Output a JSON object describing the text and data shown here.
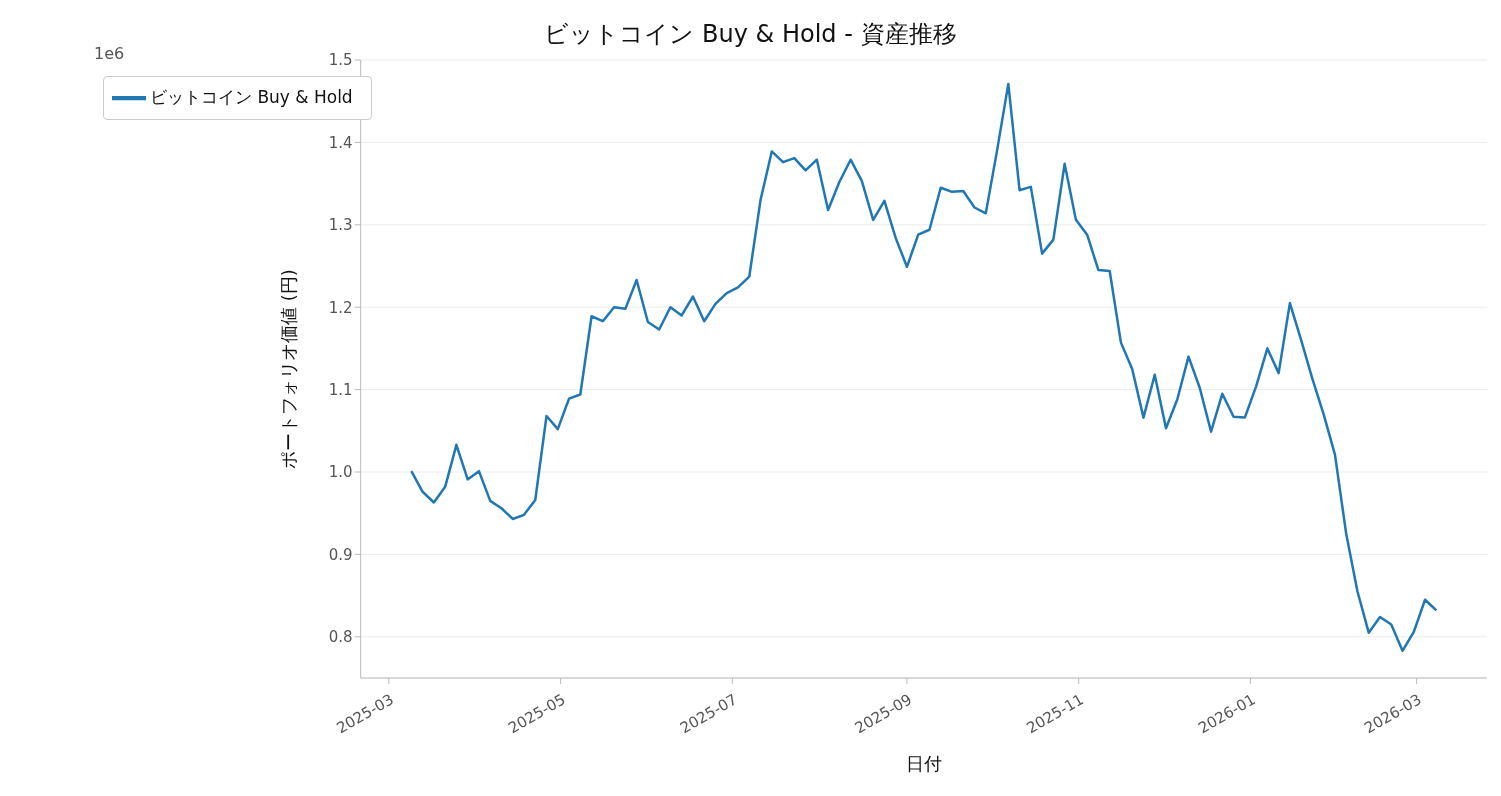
{
  "chart_data": {
    "type": "line",
    "title": "ビットコイン Buy & Hold - 資産推移",
    "xlabel": "日付",
    "ylabel": "ポートフォリオ価値 (円)",
    "annotations": [
      "1e6"
    ],
    "x": [
      "2025-03-09",
      "2025-03-13",
      "2025-03-17",
      "2025-03-21",
      "2025-03-25",
      "2025-03-29",
      "2025-04-02",
      "2025-04-06",
      "2025-04-10",
      "2025-04-14",
      "2025-04-18",
      "2025-04-22",
      "2025-04-26",
      "2025-04-30",
      "2025-05-04",
      "2025-05-08",
      "2025-05-12",
      "2025-05-16",
      "2025-05-20",
      "2025-05-24",
      "2025-05-28",
      "2025-06-01",
      "2025-06-05",
      "2025-06-09",
      "2025-06-13",
      "2025-06-17",
      "2025-06-21",
      "2025-06-25",
      "2025-06-29",
      "2025-07-03",
      "2025-07-07",
      "2025-07-11",
      "2025-07-15",
      "2025-07-19",
      "2025-07-23",
      "2025-07-27",
      "2025-07-31",
      "2025-08-04",
      "2025-08-08",
      "2025-08-12",
      "2025-08-16",
      "2025-08-20",
      "2025-08-24",
      "2025-08-28",
      "2025-09-01",
      "2025-09-05",
      "2025-09-09",
      "2025-09-13",
      "2025-09-17",
      "2025-09-21",
      "2025-09-25",
      "2025-09-29",
      "2025-10-03",
      "2025-10-07",
      "2025-10-11",
      "2025-10-15",
      "2025-10-19",
      "2025-10-23",
      "2025-10-27",
      "2025-10-31",
      "2025-11-04",
      "2025-11-08",
      "2025-11-12",
      "2025-11-16",
      "2025-11-20",
      "2025-11-24",
      "2025-11-28",
      "2025-12-02",
      "2025-12-06",
      "2025-12-10",
      "2025-12-14",
      "2025-12-18",
      "2025-12-22",
      "2025-12-26",
      "2025-12-30",
      "2026-01-03",
      "2026-01-07",
      "2026-01-11",
      "2026-01-15",
      "2026-01-19",
      "2026-01-23",
      "2026-01-27",
      "2026-01-31",
      "2026-02-04",
      "2026-02-08",
      "2026-02-12",
      "2026-02-16",
      "2026-02-20",
      "2026-02-24",
      "2026-02-28",
      "2026-03-04",
      "2026-03-08"
    ],
    "series": [
      {
        "name": "ビットコイン Buy & Hold",
        "color": "#1f77b4",
        "values": [
          1.001,
          0.976,
          0.963,
          0.982,
          1.033,
          0.991,
          1.001,
          0.965,
          0.956,
          0.943,
          0.948,
          0.966,
          1.068,
          1.052,
          1.089,
          1.094,
          1.189,
          1.183,
          1.2,
          1.198,
          1.233,
          1.182,
          1.173,
          1.2,
          1.19,
          1.213,
          1.183,
          1.204,
          1.217,
          1.224,
          1.237,
          1.33,
          1.389,
          1.376,
          1.381,
          1.366,
          1.379,
          1.318,
          1.352,
          1.379,
          1.353,
          1.306,
          1.329,
          1.284,
          1.249,
          1.288,
          1.294,
          1.345,
          1.34,
          1.341,
          1.321,
          1.314,
          1.39,
          1.471,
          1.342,
          1.346,
          1.265,
          1.282,
          1.374,
          1.306,
          1.288,
          1.245,
          1.244,
          1.157,
          1.125,
          1.066,
          1.118,
          1.053,
          1.088,
          1.14,
          1.102,
          1.049,
          1.095,
          1.067,
          1.066,
          1.104,
          1.15,
          1.12,
          1.205,
          1.16,
          1.113,
          1.07,
          1.021,
          0.925,
          0.855,
          0.805,
          0.824,
          0.815,
          0.783,
          0.806,
          0.845,
          0.832
        ]
      }
    ],
    "xlim": [
      "2025-02-19",
      "2026-03-26"
    ],
    "xticks": [
      "2025-03",
      "2025-05",
      "2025-07",
      "2025-09",
      "2025-11",
      "2026-01",
      "2026-03"
    ],
    "ylim": [
      0.75,
      1.5
    ],
    "yticks": [
      {
        "value": 0.8,
        "label": "0.8"
      },
      {
        "value": 0.9,
        "label": "0.9"
      },
      {
        "value": 1,
        "label": "1.0"
      },
      {
        "value": 1.1,
        "label": "1.1"
      },
      {
        "value": 1.2,
        "label": "1.2"
      },
      {
        "value": 1.3,
        "label": "1.3"
      },
      {
        "value": 1.4,
        "label": "1.4"
      },
      {
        "value": 1.5,
        "label": "1.5"
      }
    ],
    "grid": "y",
    "legend": "top left",
    "marker": "none",
    "line_style": "solid"
  }
}
